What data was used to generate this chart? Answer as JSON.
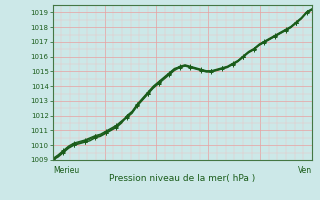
{
  "title": "Pression niveau de la mer( hPa )",
  "xlabel_left": "Merieu",
  "xlabel_right": "Ven",
  "ylim": [
    1009,
    1019.5
  ],
  "yticks": [
    1009,
    1010,
    1011,
    1012,
    1013,
    1014,
    1015,
    1016,
    1017,
    1018,
    1019
  ],
  "bg_color": "#cce8e8",
  "grid_color_major": "#e8a0a0",
  "grid_color_minor": "#f0c0c0",
  "line_color": "#1a5c1a",
  "n_points": 50,
  "series": [
    [
      1009.0,
      1009.2,
      1009.5,
      1009.8,
      1010.0,
      1010.1,
      1010.2,
      1010.3,
      1010.5,
      1010.6,
      1010.8,
      1011.0,
      1011.2,
      1011.5,
      1012.0,
      1012.3,
      1012.8,
      1013.2,
      1013.6,
      1014.0,
      1014.3,
      1014.6,
      1014.9,
      1015.2,
      1015.3,
      1015.4,
      1015.3,
      1015.2,
      1015.1,
      1015.0,
      1015.0,
      1015.1,
      1015.2,
      1015.3,
      1015.5,
      1015.7,
      1016.0,
      1016.3,
      1016.5,
      1016.8,
      1017.0,
      1017.2,
      1017.4,
      1017.6,
      1017.8,
      1018.0,
      1018.3,
      1018.6,
      1019.0,
      1019.2
    ],
    [
      1009.0,
      1009.25,
      1009.55,
      1009.85,
      1010.05,
      1010.15,
      1010.25,
      1010.4,
      1010.55,
      1010.65,
      1010.85,
      1011.05,
      1011.25,
      1011.55,
      1011.85,
      1012.15,
      1012.65,
      1013.05,
      1013.45,
      1013.85,
      1014.15,
      1014.45,
      1014.75,
      1015.05,
      1015.25,
      1015.35,
      1015.25,
      1015.15,
      1015.05,
      1014.95,
      1014.95,
      1015.05,
      1015.15,
      1015.25,
      1015.45,
      1015.65,
      1015.95,
      1016.25,
      1016.45,
      1016.75,
      1016.95,
      1017.15,
      1017.35,
      1017.55,
      1017.75,
      1017.95,
      1018.25,
      1018.55,
      1018.95,
      1019.15
    ],
    [
      1009.05,
      1009.3,
      1009.6,
      1009.9,
      1010.1,
      1010.2,
      1010.3,
      1010.45,
      1010.6,
      1010.7,
      1010.9,
      1011.1,
      1011.3,
      1011.6,
      1011.9,
      1012.2,
      1012.7,
      1013.1,
      1013.5,
      1013.9,
      1014.2,
      1014.5,
      1014.8,
      1015.1,
      1015.3,
      1015.4,
      1015.3,
      1015.2,
      1015.1,
      1015.0,
      1015.0,
      1015.1,
      1015.2,
      1015.3,
      1015.5,
      1015.7,
      1016.0,
      1016.3,
      1016.5,
      1016.8,
      1017.0,
      1017.2,
      1017.4,
      1017.6,
      1017.8,
      1018.0,
      1018.3,
      1018.6,
      1019.0,
      1019.2
    ],
    [
      1009.1,
      1009.35,
      1009.65,
      1009.95,
      1010.15,
      1010.25,
      1010.35,
      1010.5,
      1010.65,
      1010.75,
      1010.95,
      1011.15,
      1011.35,
      1011.65,
      1011.95,
      1012.25,
      1012.75,
      1013.15,
      1013.55,
      1013.95,
      1014.25,
      1014.55,
      1014.85,
      1015.15,
      1015.35,
      1015.45,
      1015.35,
      1015.25,
      1015.15,
      1015.05,
      1015.05,
      1015.15,
      1015.25,
      1015.35,
      1015.55,
      1015.75,
      1016.05,
      1016.35,
      1016.55,
      1016.85,
      1017.05,
      1017.25,
      1017.45,
      1017.65,
      1017.85,
      1018.05,
      1018.35,
      1018.65,
      1019.05,
      1019.25
    ]
  ]
}
